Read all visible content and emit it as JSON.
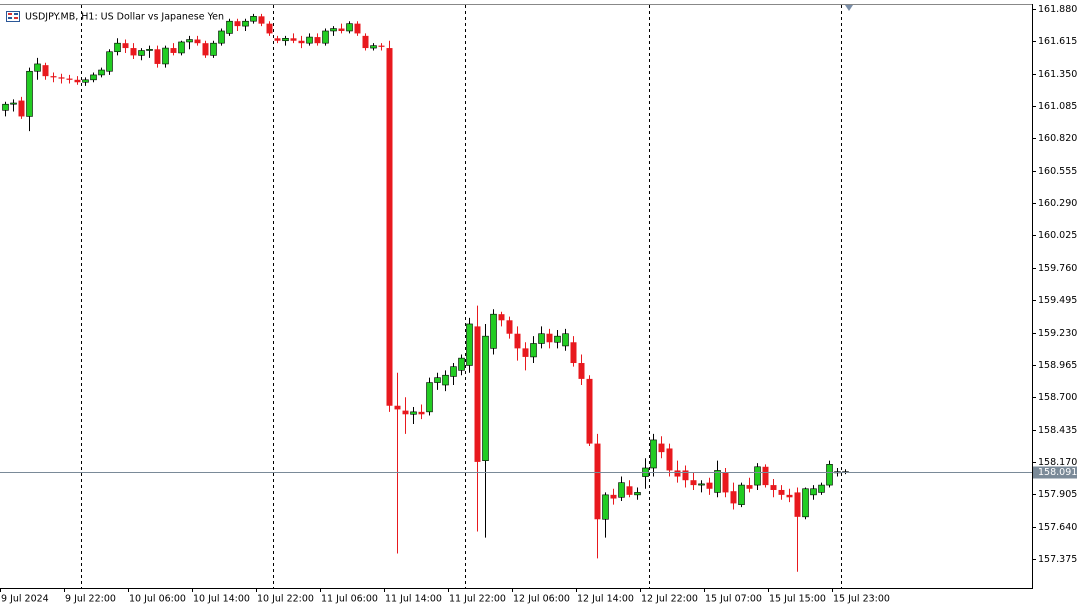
{
  "chart_data": {
    "type": "candlestick",
    "title": "USDJPY.MB, H1:  US Dollar vs Japanese Yen",
    "categories": [
      "9 Jul 2024",
      null,
      null,
      null,
      null,
      null,
      null,
      null,
      "9 Jul 22:00",
      null,
      null,
      null,
      null,
      null,
      null,
      null,
      "10 Jul 06:00",
      null,
      null,
      null,
      null,
      null,
      null,
      null,
      "10 Jul 14:00",
      null,
      null,
      null,
      null,
      null,
      null,
      null,
      "10 Jul 22:00",
      null,
      null,
      null,
      null,
      null,
      null,
      null,
      "11 Jul 06:00",
      null,
      null,
      null,
      null,
      null,
      null,
      null,
      "11 Jul 14:00",
      null,
      null,
      null,
      null,
      null,
      null,
      null,
      "11 Jul 22:00",
      null,
      null,
      null,
      null,
      null,
      null,
      null,
      "12 Jul 06:00",
      null,
      null,
      null,
      null,
      null,
      null,
      null,
      "12 Jul 14:00",
      null,
      null,
      null,
      null,
      null,
      null,
      null,
      "12 Jul 22:00",
      null,
      null,
      null,
      null,
      null,
      null,
      null,
      "15 Jul 07:00",
      null,
      null,
      null,
      null,
      null,
      null,
      null,
      "15 Jul 15:00",
      null,
      null,
      null,
      null,
      null,
      null,
      null,
      "15 Jul 23:00",
      null
    ],
    "open": [
      161.05,
      161.1,
      161.13,
      161.0,
      161.37,
      161.42,
      161.33,
      161.32,
      161.31,
      161.3,
      161.28,
      161.3,
      161.34,
      161.37,
      161.53,
      161.6,
      161.56,
      161.5,
      161.54,
      161.55,
      161.43,
      161.56,
      161.52,
      161.61,
      161.63,
      161.6,
      161.5,
      161.6,
      161.68,
      161.78,
      161.74,
      161.78,
      161.82,
      161.76,
      161.64,
      161.62,
      161.64,
      161.62,
      161.6,
      161.65,
      161.6,
      161.7,
      161.72,
      161.7,
      161.76,
      161.66,
      161.56,
      161.58,
      161.56,
      158.63,
      158.59,
      158.56,
      158.58,
      158.58,
      158.82,
      158.8,
      158.87,
      158.92,
      158.96,
      159.28,
      158.18,
      159.1,
      159.38,
      159.33,
      159.22,
      159.1,
      159.03,
      159.14,
      159.22,
      159.15,
      159.12,
      159.15,
      158.98,
      158.85,
      158.32,
      157.7,
      157.9,
      157.88,
      157.97,
      157.9,
      158.05,
      158.12,
      158.32,
      158.28,
      158.1,
      158.1,
      158.02,
      157.98,
      158.0,
      157.92,
      158.08,
      157.93,
      157.82,
      157.98,
      157.98,
      158.13,
      157.98,
      157.94,
      157.9,
      157.92,
      157.72,
      157.9,
      157.92,
      157.98,
      158.08,
      158.09
    ],
    "high": [
      161.12,
      161.14,
      161.16,
      161.4,
      161.48,
      161.44,
      161.36,
      161.35,
      161.34,
      161.33,
      161.32,
      161.36,
      161.4,
      161.55,
      161.64,
      161.63,
      161.6,
      161.56,
      161.58,
      161.58,
      161.58,
      161.6,
      161.62,
      161.66,
      161.66,
      161.62,
      161.62,
      161.72,
      161.8,
      161.8,
      161.8,
      161.84,
      161.84,
      161.78,
      161.66,
      161.66,
      161.68,
      161.66,
      161.68,
      161.68,
      161.72,
      161.74,
      161.76,
      161.78,
      161.78,
      161.68,
      161.6,
      161.6,
      161.62,
      158.9,
      158.7,
      158.62,
      158.64,
      158.86,
      158.9,
      158.92,
      158.98,
      159.05,
      159.35,
      159.45,
      159.3,
      159.42,
      159.4,
      159.36,
      159.28,
      159.15,
      159.2,
      159.28,
      159.26,
      159.25,
      159.26,
      159.2,
      159.05,
      158.88,
      158.4,
      157.92,
      157.95,
      158.05,
      158.02,
      157.96,
      158.2,
      158.4,
      158.38,
      158.32,
      158.18,
      158.14,
      158.08,
      158.02,
      158.04,
      158.18,
      158.12,
      158.0,
      158.0,
      158.04,
      158.16,
      158.15,
      158.03,
      157.98,
      157.95,
      157.96,
      157.96,
      157.98,
      158.0,
      158.18,
      158.12,
      158.11
    ],
    "low": [
      161.0,
      161.04,
      160.98,
      160.88,
      161.3,
      161.3,
      161.28,
      161.27,
      161.27,
      161.26,
      161.25,
      161.28,
      161.32,
      161.34,
      161.5,
      161.52,
      161.47,
      161.46,
      161.48,
      161.4,
      161.4,
      161.5,
      161.5,
      161.55,
      161.58,
      161.48,
      161.48,
      161.58,
      161.66,
      161.7,
      161.7,
      161.76,
      161.74,
      161.66,
      161.6,
      161.58,
      161.6,
      161.56,
      161.58,
      161.58,
      161.58,
      161.66,
      161.68,
      161.68,
      161.66,
      161.54,
      161.54,
      161.54,
      158.58,
      157.42,
      158.4,
      158.48,
      158.52,
      158.55,
      158.76,
      158.75,
      158.8,
      158.88,
      158.9,
      157.6,
      157.55,
      159.05,
      159.28,
      159.18,
      159.0,
      158.92,
      158.98,
      159.1,
      159.1,
      159.1,
      159.08,
      158.95,
      158.8,
      158.3,
      157.38,
      157.55,
      157.82,
      157.85,
      157.88,
      157.86,
      157.95,
      158.05,
      158.2,
      158.05,
      158.0,
      157.96,
      157.94,
      157.92,
      157.9,
      157.88,
      157.88,
      157.78,
      157.8,
      157.92,
      157.94,
      157.96,
      157.88,
      157.86,
      157.84,
      157.27,
      157.7,
      157.86,
      157.9,
      157.96,
      158.05,
      158.07
    ],
    "close": [
      161.1,
      161.11,
      161.0,
      161.37,
      161.43,
      161.33,
      161.32,
      161.31,
      161.3,
      161.28,
      161.3,
      161.34,
      161.38,
      161.53,
      161.6,
      161.56,
      161.5,
      161.54,
      161.55,
      161.43,
      161.56,
      161.52,
      161.61,
      161.63,
      161.6,
      161.5,
      161.6,
      161.7,
      161.78,
      161.74,
      161.78,
      161.82,
      161.76,
      161.68,
      161.62,
      161.64,
      161.62,
      161.6,
      161.65,
      161.6,
      161.7,
      161.72,
      161.7,
      161.76,
      161.68,
      161.56,
      161.58,
      161.57,
      158.63,
      158.6,
      158.56,
      158.58,
      158.56,
      158.82,
      158.86,
      158.88,
      158.95,
      159.02,
      159.3,
      158.17,
      159.2,
      159.38,
      159.33,
      159.22,
      159.1,
      159.03,
      159.14,
      159.22,
      159.15,
      159.2,
      159.22,
      158.98,
      158.85,
      158.32,
      157.7,
      157.9,
      157.87,
      158.0,
      157.9,
      157.92,
      158.12,
      158.35,
      158.25,
      158.1,
      158.05,
      158.02,
      157.98,
      157.99,
      157.95,
      158.1,
      157.92,
      157.83,
      157.98,
      157.95,
      158.13,
      157.98,
      157.94,
      157.9,
      157.88,
      157.72,
      157.95,
      157.95,
      157.98,
      158.15,
      158.09,
      158.09
    ],
    "up_color": "#22cc22",
    "down_color": "#e8191e",
    "last_price": 158.091,
    "ylim": [
      157.137,
      161.921
    ],
    "yticks": [
      {
        "value": 161.88,
        "label": "161.880"
      },
      161.615,
      {
        "value": 161.35,
        "label": "161.350"
      },
      161.085,
      {
        "value": 160.82,
        "label": "160.820"
      },
      160.555,
      {
        "value": 160.29,
        "label": "160.290"
      },
      160.025,
      {
        "value": 159.76,
        "label": "159.760"
      },
      159.495,
      {
        "value": 159.23,
        "label": "159.230"
      },
      158.965,
      {
        "value": 158.7,
        "label": "158.700"
      },
      158.435,
      {
        "value": 158.17,
        "label": "158.170"
      },
      157.905,
      {
        "value": 157.64,
        "label": "157.640"
      },
      157.375
    ],
    "grid": false
  }
}
